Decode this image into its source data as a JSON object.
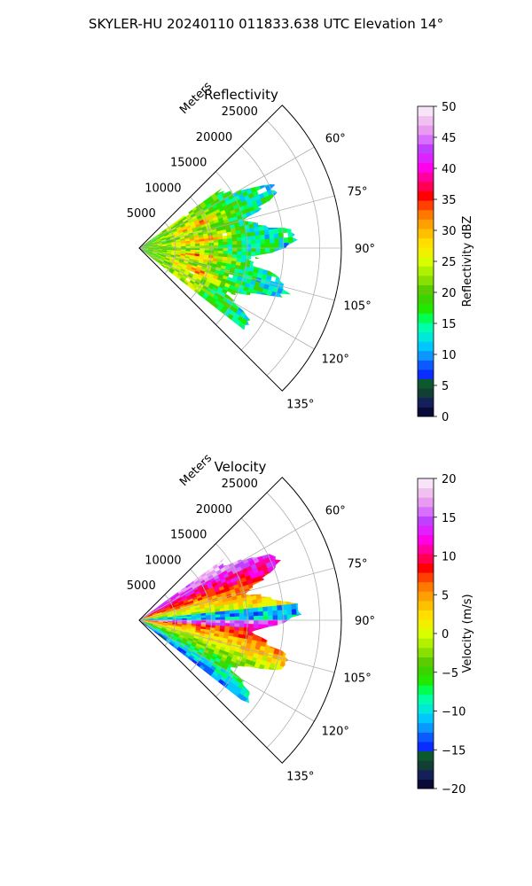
{
  "figure": {
    "suptitle": "SKYLER-HU  20240110  011833.638 UTC Elevation 14°"
  },
  "chart_data": [
    {
      "type": "heatmap",
      "projection": "polar-sector",
      "title": "Reflectivity",
      "range_label": "Meters",
      "theta_min_deg": 45,
      "theta_max_deg": 135,
      "rmax": 28000,
      "r_ticks": [
        5000,
        10000,
        15000,
        20000,
        25000
      ],
      "r_tick_labels": [
        "5000",
        "10000",
        "15000",
        "20000",
        "25000"
      ],
      "theta_ticks": [
        60,
        75,
        90,
        105,
        120,
        135
      ],
      "theta_tick_labels": [
        "60°",
        "75°",
        "90°",
        "105°",
        "120°",
        "135°"
      ],
      "grid": true,
      "data_extent": {
        "theta_deg": [
          54,
          128
        ],
        "r_max": 22000
      },
      "colorbar": {
        "label": "Reflectivity dBZ",
        "vmin": 0,
        "vmax": 50,
        "ticks": [
          0,
          5,
          10,
          15,
          20,
          25,
          30,
          35,
          40,
          45,
          50
        ],
        "tick_labels": [
          "0",
          "5",
          "10",
          "15",
          "20",
          "25",
          "30",
          "35",
          "40",
          "45",
          "50"
        ],
        "colors": [
          "#0a0a3a",
          "#14205a",
          "#123e34",
          "#0c5a2c",
          "#0a2cff",
          "#0a5aff",
          "#0a98ff",
          "#00c8ff",
          "#00e8d8",
          "#00ffa8",
          "#00ff50",
          "#22e800",
          "#3cd400",
          "#5acc00",
          "#88e000",
          "#b0f000",
          "#d8ff00",
          "#f0f000",
          "#ffde00",
          "#ffc000",
          "#ffa000",
          "#ff7800",
          "#ff4000",
          "#ff0000",
          "#ff0050",
          "#ff00a0",
          "#ff00e8",
          "#e020ff",
          "#c040ff",
          "#d870ff",
          "#e89cf0",
          "#f0c0f0",
          "#f8e4f8"
        ]
      }
    },
    {
      "type": "heatmap",
      "projection": "polar-sector",
      "title": "Velocity",
      "range_label": "Meters",
      "theta_min_deg": 45,
      "theta_max_deg": 135,
      "rmax": 28000,
      "r_ticks": [
        5000,
        10000,
        15000,
        20000,
        25000
      ],
      "r_tick_labels": [
        "5000",
        "10000",
        "15000",
        "20000",
        "25000"
      ],
      "theta_ticks": [
        60,
        75,
        90,
        105,
        120,
        135
      ],
      "theta_tick_labels": [
        "60°",
        "75°",
        "90°",
        "105°",
        "120°",
        "135°"
      ],
      "grid": true,
      "data_extent": {
        "theta_deg": [
          54,
          128
        ],
        "r_max": 22500
      },
      "colorbar": {
        "label": "Velocity (m/s)",
        "vmin": -20,
        "vmax": 20,
        "ticks": [
          -20,
          -15,
          -10,
          -5,
          0,
          5,
          10,
          15,
          20
        ],
        "tick_labels": [
          "−20",
          "−15",
          "−10",
          "−5",
          "0",
          "5",
          "10",
          "15",
          "20"
        ],
        "colors": [
          "#0a0a3a",
          "#14205a",
          "#123e34",
          "#0c5a2c",
          "#0a2cff",
          "#0a5aff",
          "#0a98ff",
          "#00c8ff",
          "#00e8d8",
          "#00ffa8",
          "#00ff50",
          "#22e800",
          "#3cd400",
          "#5acc00",
          "#88e000",
          "#b0f000",
          "#d8ff00",
          "#f0f000",
          "#ffde00",
          "#ffc000",
          "#ffa000",
          "#ff7800",
          "#ff4000",
          "#ff0000",
          "#ff0050",
          "#ff00a0",
          "#ff00e8",
          "#e020ff",
          "#c040ff",
          "#d870ff",
          "#e89cf0",
          "#f0c0f0",
          "#f8e4f8"
        ]
      }
    }
  ]
}
